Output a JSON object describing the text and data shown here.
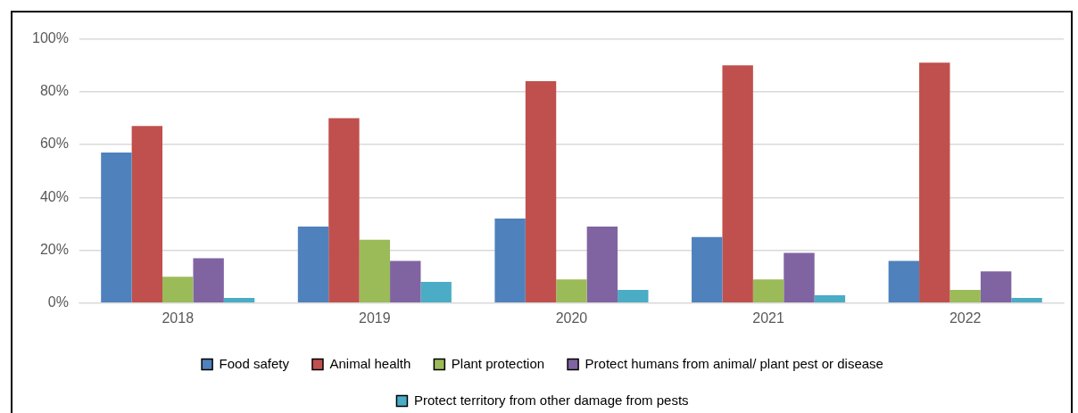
{
  "chart_data": {
    "type": "bar",
    "categories": [
      "2018",
      "2019",
      "2020",
      "2021",
      "2022"
    ],
    "series": [
      {
        "name": "Food safety",
        "color": "#4f81bd",
        "values": [
          57,
          29,
          32,
          25,
          16
        ]
      },
      {
        "name": "Animal health",
        "color": "#c0504d",
        "values": [
          67,
          70,
          84,
          90,
          91
        ]
      },
      {
        "name": "Plant protection",
        "color": "#9bbb59",
        "values": [
          10,
          24,
          9,
          9,
          5
        ]
      },
      {
        "name": "Protect humans from animal/ plant pest or disease",
        "color": "#8064a2",
        "values": [
          17,
          16,
          29,
          19,
          12
        ]
      },
      {
        "name": "Protect territory from other damage from pests",
        "color": "#4bacc6",
        "values": [
          2,
          8,
          5,
          3,
          2
        ]
      }
    ],
    "ylim": [
      0,
      100
    ],
    "yticks": [
      {
        "value": 0,
        "label": "0%"
      },
      {
        "value": 20,
        "label": "20%"
      },
      {
        "value": 40,
        "label": "40%"
      },
      {
        "value": 60,
        "label": "60%"
      },
      {
        "value": 80,
        "label": "80%"
      },
      {
        "value": 100,
        "label": "100%"
      }
    ],
    "grid": "y",
    "legend": "bottom"
  }
}
